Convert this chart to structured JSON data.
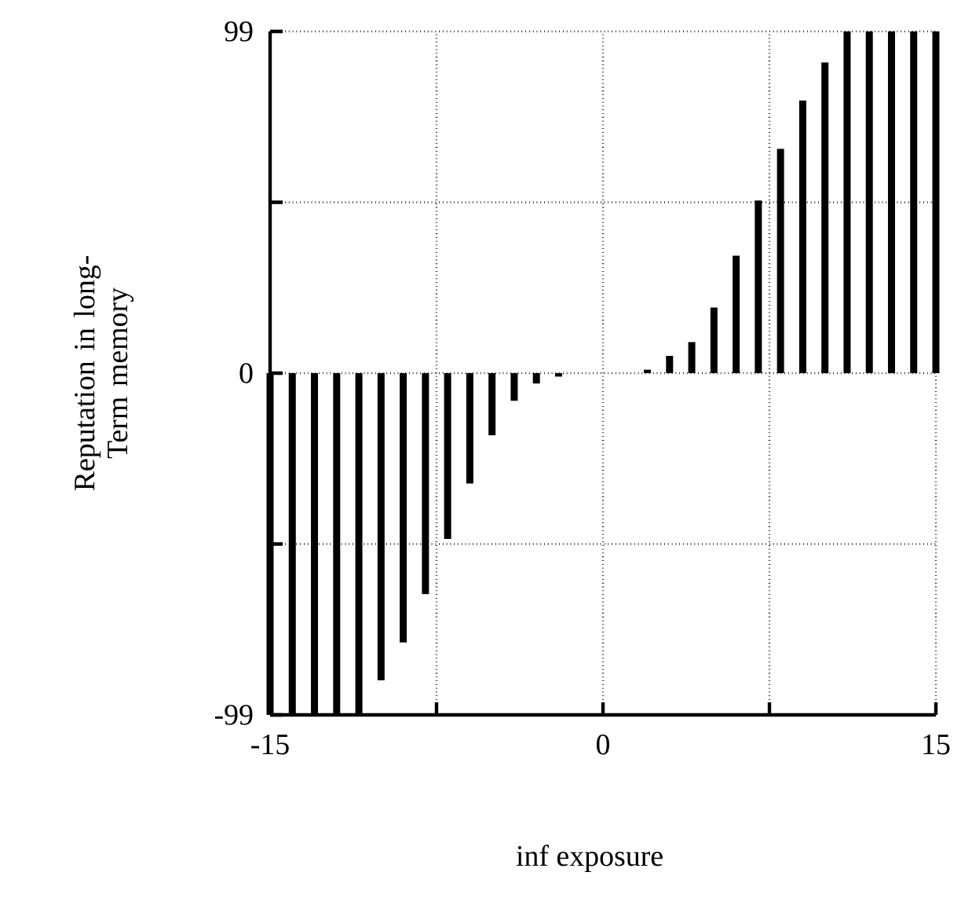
{
  "chart_data": {
    "type": "bar",
    "xlabel": "inf exposure",
    "ylabel": "Reputation in long-Term memory",
    "x": [
      -15,
      -14,
      -13,
      -12,
      -11,
      -10,
      -9,
      -8,
      -7,
      -6,
      -5,
      -4,
      -3,
      -2,
      -1,
      0,
      1,
      2,
      3,
      4,
      5,
      6,
      7,
      8,
      9,
      10,
      11,
      12,
      13,
      14,
      15
    ],
    "values": [
      -99,
      -99,
      -99,
      -99,
      -99,
      -89,
      -78,
      -64,
      -48,
      -32,
      -18,
      -8,
      -3,
      -1,
      0,
      0,
      0,
      1,
      5,
      9,
      19,
      34,
      50,
      65,
      79,
      90,
      99,
      99,
      99,
      99,
      99
    ],
    "color": "#000000",
    "xlim": [
      -15,
      15
    ],
    "ylim": [
      -99,
      99
    ],
    "xticks": [
      -15,
      {
        "value": -7.5,
        "label": null
      },
      0,
      {
        "value": 7.5,
        "label": null
      },
      15
    ],
    "yticks": [
      -99,
      {
        "value": -49.5,
        "label": null
      },
      0,
      {
        "value": 49.5,
        "label": null
      },
      99
    ],
    "grid": true
  }
}
